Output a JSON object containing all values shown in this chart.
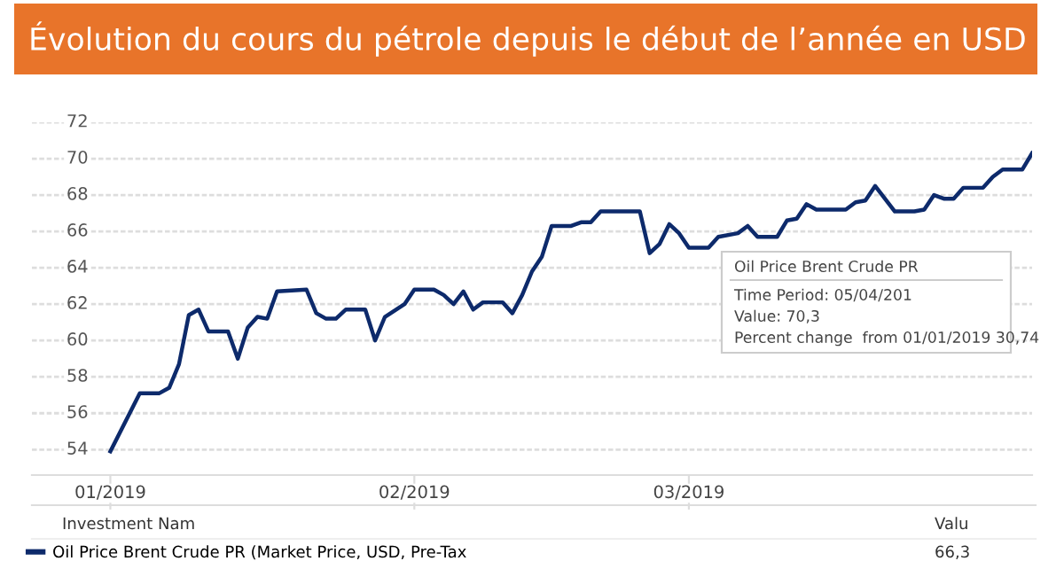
{
  "chart_data": {
    "type": "line",
    "title": "Évolution du cours du pétrole depuis le début de l’année en USD",
    "x": [
      "2019-01-01",
      "2019-01-04",
      "2019-01-06",
      "2019-01-07",
      "2019-01-08",
      "2019-01-09",
      "2019-01-10",
      "2019-01-11",
      "2019-01-13",
      "2019-01-14",
      "2019-01-15",
      "2019-01-16",
      "2019-01-17",
      "2019-01-18",
      "2019-01-21",
      "2019-01-22",
      "2019-01-23",
      "2019-01-24",
      "2019-01-25",
      "2019-01-27",
      "2019-01-28",
      "2019-01-29",
      "2019-01-31",
      "2019-02-01",
      "2019-02-03",
      "2019-02-04",
      "2019-02-05",
      "2019-02-06",
      "2019-02-07",
      "2019-02-08",
      "2019-02-10",
      "2019-02-11",
      "2019-02-12",
      "2019-02-13",
      "2019-02-14",
      "2019-02-15",
      "2019-02-17",
      "2019-02-18",
      "2019-02-19",
      "2019-02-20",
      "2019-02-24",
      "2019-02-25",
      "2019-02-26",
      "2019-02-27",
      "2019-02-28",
      "2019-03-01",
      "2019-03-03",
      "2019-03-04",
      "2019-03-06",
      "2019-03-07",
      "2019-03-08",
      "2019-03-10",
      "2019-03-11",
      "2019-03-12",
      "2019-03-13",
      "2019-03-14",
      "2019-03-17",
      "2019-03-18",
      "2019-03-19",
      "2019-03-20",
      "2019-03-22",
      "2019-03-24",
      "2019-03-25",
      "2019-03-26",
      "2019-03-27",
      "2019-03-28",
      "2019-03-29",
      "2019-03-31",
      "2019-04-01",
      "2019-04-02",
      "2019-04-04",
      "2019-04-05"
    ],
    "series": [
      {
        "name": "Oil Price Brent Crude PR (Market Price, USD, Pre-Tax",
        "color": "#0d2a6b",
        "values": [
          53.9,
          57.1,
          57.1,
          57.4,
          58.7,
          61.4,
          61.7,
          60.5,
          60.5,
          59.0,
          60.7,
          61.3,
          61.2,
          62.7,
          62.8,
          61.5,
          61.2,
          61.2,
          61.7,
          61.7,
          60.0,
          61.3,
          62.0,
          62.8,
          62.8,
          62.5,
          62.0,
          62.7,
          61.7,
          62.1,
          62.1,
          61.5,
          62.5,
          63.8,
          64.6,
          66.3,
          66.3,
          66.5,
          66.5,
          67.1,
          67.1,
          64.8,
          65.3,
          66.4,
          65.9,
          65.1,
          65.1,
          65.7,
          65.9,
          66.3,
          65.7,
          65.7,
          66.6,
          66.7,
          67.5,
          67.2,
          67.2,
          67.6,
          67.7,
          68.5,
          67.1,
          67.1,
          67.2,
          68.0,
          67.8,
          67.8,
          68.4,
          68.4,
          69.0,
          69.4,
          69.4,
          70.3
        ]
      }
    ],
    "xlim": [
      "2018-12-24",
      "2019-04-05"
    ],
    "xticks": [
      {
        "value": "2019-01-01",
        "label": "01/2019"
      },
      {
        "value": "2019-02-01",
        "label": "02/2019"
      },
      {
        "value": "2019-03-01",
        "label": "03/2019"
      }
    ],
    "ylim": [
      52.6,
      72
    ],
    "yticks": [
      54,
      56,
      58,
      60,
      62,
      64,
      66,
      68,
      70,
      72
    ],
    "grid": "y",
    "legend": "bottom",
    "marker": "none",
    "line_style": "solid",
    "annotations": [
      "Oil Price Brent Crude PR",
      "Time Period: 05/04/201",
      "Value: 70,3",
      "Percent change  from 01/01/2019 30,74",
      "Investment Nam",
      "Valu",
      "66,3"
    ]
  }
}
